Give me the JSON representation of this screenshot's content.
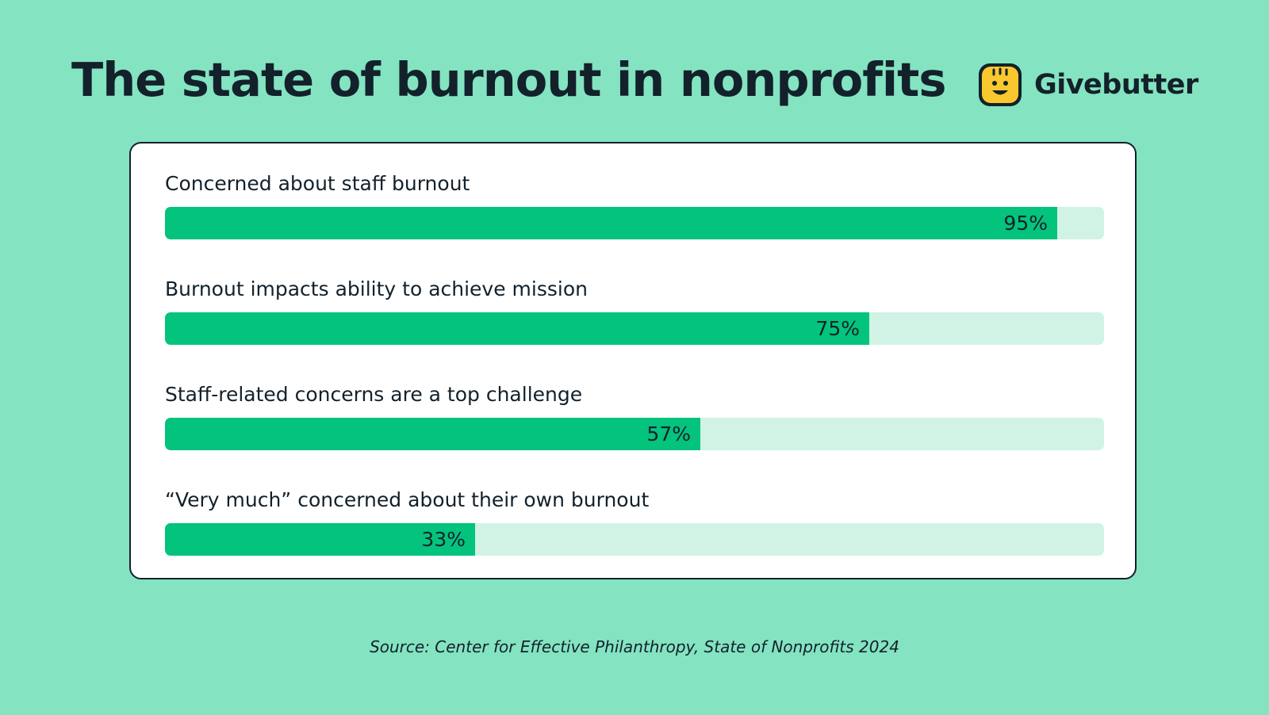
{
  "header": {
    "title": "The state of burnout in nonprofits",
    "brand_name": "Givebutter"
  },
  "colors": {
    "background": "#84e3c1",
    "bar_fill": "#04c37d",
    "bar_track": "#d0f3e5",
    "logo_yellow": "#f9c82e"
  },
  "chart_data": {
    "type": "bar",
    "orientation": "horizontal",
    "categories": [
      "Concerned about staff burnout",
      "Burnout impacts ability to achieve mission",
      "Staff-related concerns are a top challenge",
      "“Very much” concerned about their own burnout"
    ],
    "values": [
      95,
      75,
      57,
      33
    ],
    "value_labels": [
      "95%",
      "75%",
      "57%",
      "33%"
    ],
    "xlim": [
      0,
      100
    ],
    "grid": false,
    "legend": "none"
  },
  "footer": {
    "source": "Source: Center for Effective Philanthropy, State of Nonprofits 2024"
  }
}
